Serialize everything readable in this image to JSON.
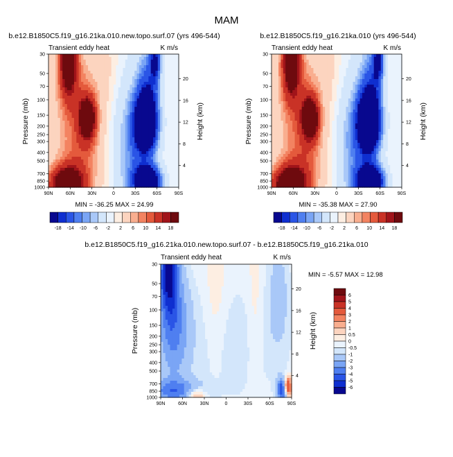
{
  "figure_title": "MAM",
  "palette": {
    "diverging_colors": [
      "#08088f",
      "#0f2fd0",
      "#2a55e6",
      "#4f7ff0",
      "#7aa5f5",
      "#a9c8f8",
      "#d3e6fb",
      "#eaf3fd",
      "#fdeee2",
      "#fcd4bf",
      "#f9ae8f",
      "#f38361",
      "#e45a3c",
      "#c93226",
      "#a0141a",
      "#6e0a0e"
    ],
    "value_label_color": "#000000"
  },
  "chart_data": [
    {
      "type": "heatmap",
      "panel": "top-left",
      "title": "b.e12.B1850C5.f19_g16.21ka.010.new.topo.surf.07 (yrs 496-544)",
      "left_label": "Transient eddy heat",
      "right_label": "K m/s",
      "ylabel": "Pressure (mb)",
      "y2label": "Height (km)",
      "x_ticks": [
        "90N",
        "60N",
        "30N",
        "0",
        "30S",
        "60S",
        "90S"
      ],
      "y_ticks": [
        "30",
        "50",
        "70",
        "100",
        "150",
        "200",
        "250",
        "300",
        "400",
        "500",
        "700",
        "850",
        "1000"
      ],
      "y2_ticks": [
        "20",
        "16",
        "12",
        "8",
        "4"
      ],
      "stats": "MIN = -36.25   MAX = 24.99",
      "colorbar_labels": [
        "-18",
        "-14",
        "-10",
        "-6",
        "-2",
        "2",
        "6",
        "10",
        "14",
        "18"
      ],
      "colorbar_levels": [
        -18,
        -16,
        -14,
        -12,
        -10,
        -8,
        -6,
        -4,
        -2,
        0,
        2,
        4,
        6,
        8,
        10,
        12,
        14,
        16,
        18
      ],
      "min": -36.25,
      "max": 24.99
    },
    {
      "type": "heatmap",
      "panel": "top-right",
      "title": "b.e12.B1850C5.f19_g16.21ka.010 (yrs 496-544)",
      "left_label": "Transient eddy heat",
      "right_label": "K m/s",
      "ylabel": "Pressure (mb)",
      "y2label": "Height (km)",
      "x_ticks": [
        "90N",
        "60N",
        "30N",
        "0",
        "30S",
        "60S",
        "90S"
      ],
      "y_ticks": [
        "30",
        "50",
        "70",
        "100",
        "150",
        "200",
        "250",
        "300",
        "400",
        "500",
        "700",
        "850",
        "1000"
      ],
      "y2_ticks": [
        "20",
        "16",
        "12",
        "8",
        "4"
      ],
      "stats": "MIN = -35.38   MAX = 27.90",
      "colorbar_labels": [
        "-18",
        "-14",
        "-10",
        "-6",
        "-2",
        "2",
        "6",
        "10",
        "14",
        "18"
      ],
      "colorbar_levels": [
        -18,
        -16,
        -14,
        -12,
        -10,
        -8,
        -6,
        -4,
        -2,
        0,
        2,
        4,
        6,
        8,
        10,
        12,
        14,
        16,
        18
      ],
      "min": -35.38,
      "max": 27.9
    },
    {
      "type": "heatmap",
      "panel": "bottom",
      "title": "b.e12.B1850C5.f19_g16.21ka.010.new.topo.surf.07 - b.e12.B1850C5.f19_g16.21ka.010",
      "left_label": "Transient eddy heat",
      "right_label": "K m/s",
      "ylabel": "Pressure (mb)",
      "y2label": "Height (km)",
      "x_ticks": [
        "90N",
        "60N",
        "30N",
        "0",
        "30S",
        "60S",
        "90S"
      ],
      "y_ticks": [
        "30",
        "50",
        "70",
        "100",
        "150",
        "200",
        "250",
        "300",
        "400",
        "500",
        "700",
        "850",
        "1000"
      ],
      "y2_ticks": [
        "20",
        "16",
        "12",
        "8",
        "4"
      ],
      "stats": "MIN =  -5.57   MAX = 12.98",
      "colorbar_labels": [
        "6",
        "5",
        "4",
        "3",
        "2",
        "1",
        "0.5",
        "0",
        "-0.5",
        "-1",
        "-2",
        "-3",
        "-4",
        "-5",
        "-6"
      ],
      "colorbar_levels": [
        -6,
        -5,
        -4,
        -3,
        -2,
        -1,
        -0.5,
        0,
        0.5,
        1,
        2,
        3,
        4,
        5,
        6
      ],
      "min": -5.57,
      "max": 12.98
    }
  ]
}
